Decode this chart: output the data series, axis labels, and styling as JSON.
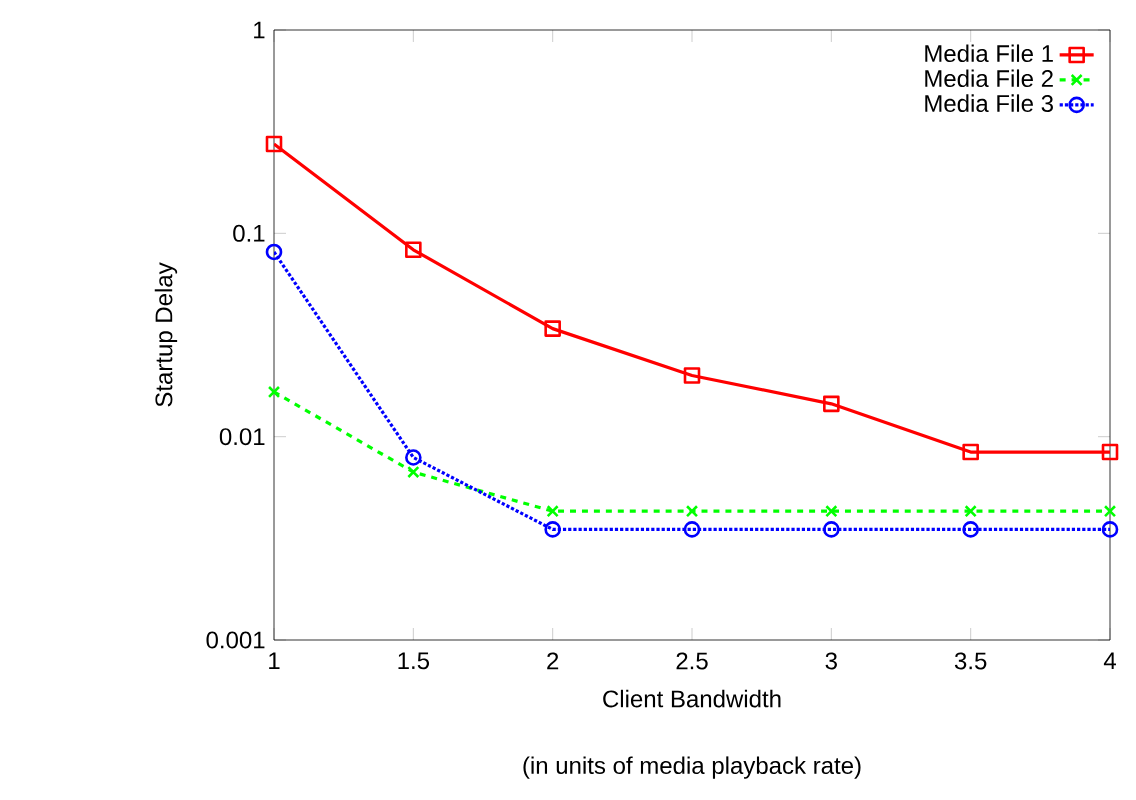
{
  "chart_data": {
    "type": "line",
    "xlabel": "Client Bandwidth",
    "ylabel": "Startup Delay",
    "annotations": [
      "(in units of media playback rate)"
    ],
    "x": [
      1,
      1.5,
      2,
      2.5,
      3,
      3.5,
      4
    ],
    "series": [
      {
        "name": "Media File 1",
        "color": "#ff0000",
        "marker": "square",
        "line_style": "solid",
        "values": [
          0.275,
          0.083,
          0.034,
          0.02,
          0.0145,
          0.0084,
          0.0084
        ]
      },
      {
        "name": "Media File 2",
        "color": "#00ff00",
        "marker": "cross",
        "line_style": "dashed",
        "values": [
          0.0166,
          0.0067,
          0.0043,
          0.0043,
          0.0043,
          0.0043,
          0.0043
        ]
      },
      {
        "name": "Media File 3",
        "color": "#0000ff",
        "marker": "circle",
        "line_style": "dotted",
        "values": [
          0.081,
          0.0079,
          0.0035,
          0.0035,
          0.0035,
          0.0035,
          0.0035
        ]
      }
    ],
    "log": "y",
    "xlim": [
      1,
      4
    ],
    "ylim": [
      0.001,
      1
    ],
    "xticks": [
      1,
      1.5,
      2,
      2.5,
      3,
      3.5,
      4
    ],
    "yticks": [
      0.001,
      0.01,
      0.1,
      1
    ],
    "grid": false,
    "legend": "top right"
  }
}
